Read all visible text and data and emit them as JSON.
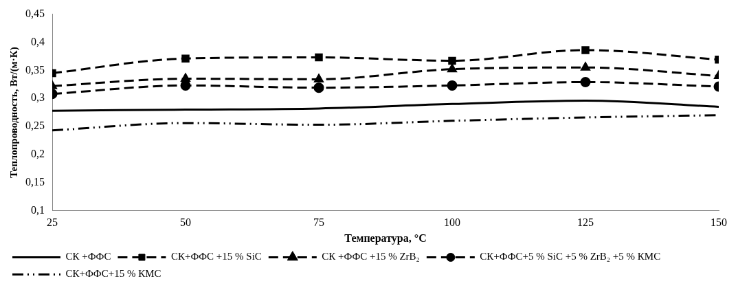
{
  "chart_data": {
    "type": "line",
    "xlabel": "Температура, °C",
    "ylabel": "Теплопроводность, Вт/(м·К)",
    "x": [
      25,
      50,
      75,
      100,
      125,
      150
    ],
    "xlim": [
      25,
      150
    ],
    "xticks": [
      25,
      50,
      75,
      100,
      125,
      150
    ],
    "ylim": [
      0.1,
      0.45
    ],
    "yticks": [
      {
        "value": 0.1,
        "label": "0,1"
      },
      {
        "value": 0.15,
        "label": "0,15"
      },
      {
        "value": 0.2,
        "label": "0,2"
      },
      {
        "value": 0.25,
        "label": "0,25"
      },
      {
        "value": 0.3,
        "label": "0,3"
      },
      {
        "value": 0.35,
        "label": "0,35"
      },
      {
        "value": 0.4,
        "label": "0,4"
      },
      {
        "value": 0.45,
        "label": "0,45"
      }
    ],
    "grid": false,
    "legend": "bottom",
    "series": [
      {
        "name": "СК +ФФС",
        "color": "#000000",
        "marker": "none",
        "line_style": "solid",
        "values": [
          0.278,
          0.28,
          0.282,
          0.29,
          0.296,
          0.285
        ]
      },
      {
        "name": "СК+ФФС +15 % SiC",
        "color": "#000000",
        "marker": "square",
        "line_style": "dashed",
        "values": [
          0.345,
          0.371,
          0.373,
          0.367,
          0.386,
          0.369
        ]
      },
      {
        "name": "СК +ФФС +15 % ZrB₂",
        "color": "#000000",
        "marker": "triangle",
        "line_style": "dashed",
        "values": [
          0.322,
          0.335,
          0.334,
          0.352,
          0.355,
          0.34
        ]
      },
      {
        "name": "СК+ФФС+5 % SiC +5 % ZrB₂ +5 % КМС",
        "color": "#000000",
        "marker": "circle",
        "line_style": "dashed",
        "values": [
          0.308,
          0.323,
          0.319,
          0.323,
          0.329,
          0.321
        ]
      },
      {
        "name": "СК+ФФС+15 % КМС",
        "color": "#000000",
        "marker": "none",
        "line_style": "dotted",
        "values": [
          0.243,
          0.256,
          0.253,
          0.26,
          0.266,
          0.27
        ]
      }
    ]
  }
}
